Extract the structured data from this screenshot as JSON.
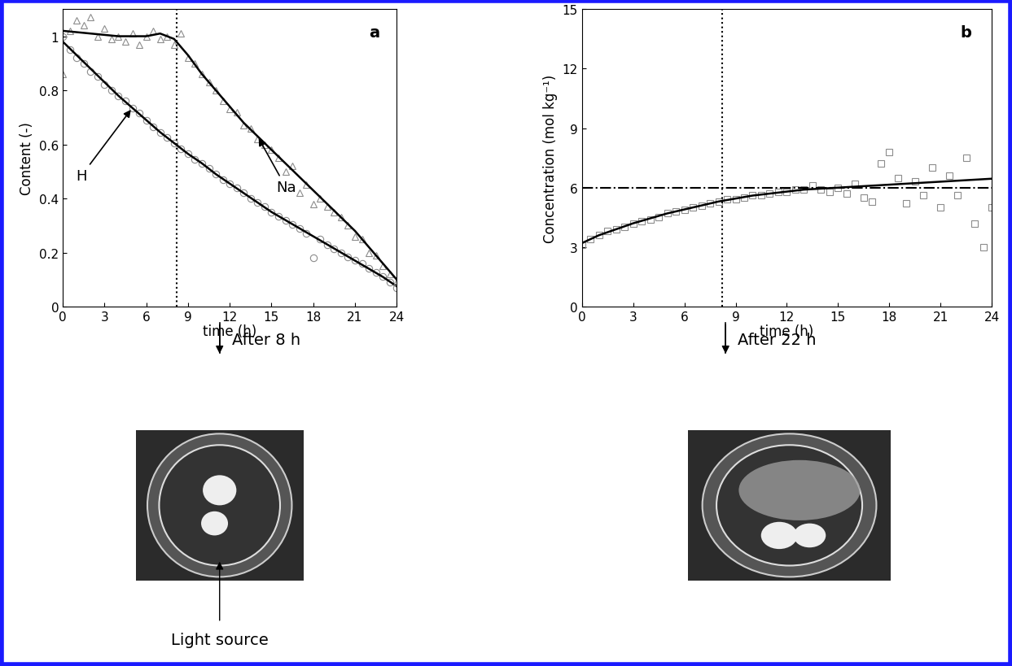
{
  "chart_data": [
    {
      "type": "scatter",
      "title": "a",
      "x_label": "time (h)",
      "y_label": "Content (-)",
      "xlim": [
        0,
        24
      ],
      "xticks": [
        0,
        3,
        6,
        9,
        12,
        15,
        18,
        21,
        24
      ],
      "ylim": [
        0,
        1.1
      ],
      "yticks": [
        0,
        0.2,
        0.4,
        0.6,
        0.8,
        1
      ],
      "vlines": [
        8.2
      ],
      "series": [
        {
          "name": "H",
          "type": "scatter",
          "marker": "o",
          "color": "#8c8c8c",
          "x": [
            0,
            0.5,
            1,
            1.5,
            2,
            2.5,
            3,
            3.5,
            4,
            4.5,
            5,
            5.5,
            6,
            6.5,
            7,
            7.5,
            8,
            8.5,
            9,
            9.5,
            10,
            10.5,
            11,
            11.5,
            12,
            12.5,
            13,
            13.5,
            14,
            14.5,
            15,
            15.5,
            16,
            16.5,
            17,
            17.5,
            18,
            18.5,
            19,
            19.5,
            20,
            20.5,
            21,
            21.5,
            22,
            22.5,
            23,
            23.5,
            24
          ],
          "values": [
            1.0,
            0.95,
            0.92,
            0.9,
            0.87,
            0.85,
            0.82,
            0.8,
            0.78,
            0.76,
            0.735,
            0.715,
            0.69,
            0.665,
            0.645,
            0.625,
            0.605,
            0.585,
            0.565,
            0.545,
            0.53,
            0.51,
            0.49,
            0.47,
            0.455,
            0.44,
            0.42,
            0.4,
            0.385,
            0.37,
            0.35,
            0.335,
            0.32,
            0.305,
            0.29,
            0.27,
            0.18,
            0.25,
            0.23,
            0.215,
            0.2,
            0.185,
            0.17,
            0.16,
            0.14,
            0.125,
            0.11,
            0.09,
            0.07
          ]
        },
        {
          "type": "line",
          "color": "#000000",
          "line_style": "solid",
          "x": [
            0,
            1,
            2,
            3,
            4,
            5,
            6,
            7,
            8,
            9,
            10,
            11,
            12,
            13,
            14,
            15,
            16,
            17,
            18,
            19,
            20,
            21,
            22,
            23,
            24
          ],
          "values": [
            0.98,
            0.93,
            0.88,
            0.83,
            0.78,
            0.735,
            0.69,
            0.645,
            0.605,
            0.565,
            0.53,
            0.49,
            0.455,
            0.42,
            0.385,
            0.35,
            0.32,
            0.29,
            0.26,
            0.23,
            0.2,
            0.17,
            0.14,
            0.11,
            0.075
          ]
        },
        {
          "name": "Na",
          "type": "scatter",
          "marker": "^",
          "color": "#8c8c8c",
          "x": [
            0,
            0.5,
            1,
            1.5,
            2,
            2.5,
            3,
            3.5,
            4,
            4.5,
            5,
            5.5,
            6,
            6.5,
            7,
            7.5,
            8,
            8.5,
            9,
            9.5,
            10,
            10.5,
            11,
            11.5,
            12,
            12.5,
            13,
            13.5,
            14,
            14.5,
            15,
            15.5,
            16,
            16.5,
            17,
            17.5,
            18,
            18.5,
            19,
            19.5,
            20,
            20.5,
            21,
            21.5,
            22,
            22.5,
            23,
            23.5,
            24
          ],
          "values": [
            0.86,
            1.02,
            1.06,
            1.04,
            1.07,
            1.0,
            1.03,
            0.99,
            1.0,
            0.98,
            1.01,
            0.97,
            1.0,
            1.02,
            0.99,
            1.0,
            0.97,
            1.01,
            0.92,
            0.9,
            0.86,
            0.83,
            0.8,
            0.76,
            0.73,
            0.72,
            0.67,
            0.66,
            0.62,
            0.6,
            0.58,
            0.55,
            0.5,
            0.52,
            0.42,
            0.45,
            0.38,
            0.4,
            0.37,
            0.35,
            0.33,
            0.3,
            0.26,
            0.25,
            0.2,
            0.19,
            0.15,
            0.12,
            0.09
          ]
        },
        {
          "type": "line",
          "color": "#000000",
          "line_style": "solid",
          "x": [
            0,
            1,
            2,
            3,
            4,
            5,
            6,
            7,
            8,
            9,
            10,
            11,
            12,
            13,
            14,
            15,
            16,
            17,
            18,
            19,
            20,
            21,
            22,
            23,
            24
          ],
          "values": [
            1.02,
            1.015,
            1.01,
            1.005,
            1.0,
            1.0,
            1.0,
            1.01,
            0.99,
            0.93,
            0.86,
            0.8,
            0.74,
            0.68,
            0.63,
            0.58,
            0.53,
            0.48,
            0.43,
            0.38,
            0.33,
            0.28,
            0.22,
            0.16,
            0.1
          ]
        }
      ]
    },
    {
      "type": "scatter",
      "title": "b",
      "x_label": "time (h)",
      "y_label": "Concentration (mol kg⁻¹)",
      "xlim": [
        0,
        24
      ],
      "xticks": [
        0,
        3,
        6,
        9,
        12,
        15,
        18,
        21,
        24
      ],
      "ylim": [
        0,
        15
      ],
      "yticks": [
        0,
        3,
        6,
        9,
        12,
        15
      ],
      "vlines": [
        8.2
      ],
      "hlines": [
        6
      ],
      "series": [
        {
          "type": "scatter",
          "marker": "s",
          "color": "#8c8c8c",
          "x": [
            0,
            0.5,
            1,
            1.5,
            2,
            2.5,
            3,
            3.5,
            4,
            4.5,
            5,
            5.5,
            6,
            6.5,
            7,
            7.5,
            8,
            8.5,
            9,
            9.5,
            10,
            10.5,
            11,
            11.5,
            12,
            12.5,
            13,
            13.5,
            14,
            14.5,
            15,
            15.5,
            16,
            16.5,
            17,
            17.5,
            18,
            18.5,
            19,
            19.5,
            20,
            20.5,
            21,
            21.5,
            22,
            22.5,
            23,
            23.5,
            24
          ],
          "values": [
            3.1,
            3.4,
            3.6,
            3.8,
            3.9,
            4.0,
            4.2,
            4.3,
            4.4,
            4.5,
            4.7,
            4.8,
            4.9,
            5.0,
            5.1,
            5.2,
            5.3,
            5.4,
            5.4,
            5.5,
            5.6,
            5.6,
            5.7,
            5.8,
            5.8,
            5.9,
            5.9,
            6.1,
            5.9,
            5.8,
            6.0,
            5.7,
            6.2,
            5.5,
            5.3,
            7.2,
            7.8,
            6.5,
            5.2,
            6.3,
            5.6,
            7.0,
            5.0,
            6.6,
            5.6,
            7.5,
            4.2,
            3.0,
            5.0
          ]
        },
        {
          "type": "line",
          "color": "#000000",
          "line_style": "solid",
          "x": [
            0,
            1,
            2,
            3,
            4,
            5,
            6,
            7,
            8,
            9,
            10,
            11,
            12,
            13,
            14,
            15,
            16,
            17,
            18,
            19,
            20,
            21,
            22,
            23,
            24
          ],
          "values": [
            3.2,
            3.6,
            3.9,
            4.2,
            4.45,
            4.7,
            4.9,
            5.1,
            5.3,
            5.45,
            5.6,
            5.7,
            5.8,
            5.9,
            5.95,
            6.0,
            6.05,
            6.1,
            6.15,
            6.2,
            6.25,
            6.3,
            6.35,
            6.4,
            6.45
          ]
        }
      ]
    }
  ],
  "photos": [
    {
      "caption": "After 8 h",
      "label": "Light source"
    },
    {
      "caption": "After 22 h"
    }
  ]
}
